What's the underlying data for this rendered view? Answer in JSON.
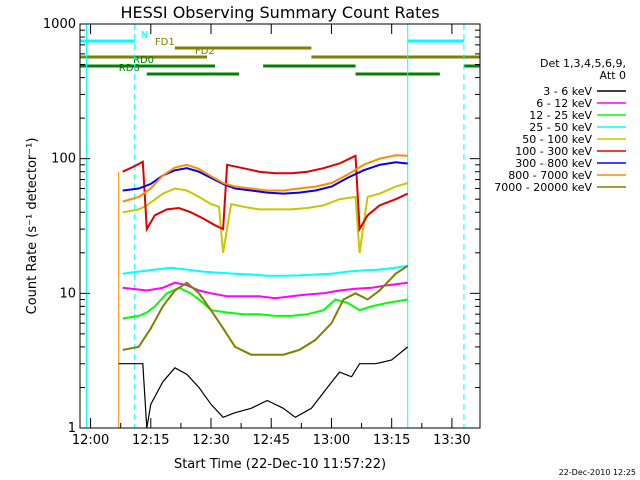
{
  "chart_data": {
    "type": "line",
    "title": "HESSI Observing Summary Count Rates",
    "xlabel": "Start Time (22-Dec-10 11:57:22)",
    "ylabel": "Count Rate (s⁻¹ detector⁻¹)",
    "x_ticks": [
      "12:00",
      "12:15",
      "12:30",
      "12:45",
      "13:00",
      "13:15",
      "13:30"
    ],
    "y_ticks": [
      "1",
      "10",
      "100",
      "1000"
    ],
    "y_scale": "log",
    "ylim": [
      1,
      1000
    ],
    "xlim": [
      "11:57:22",
      "13:37:00"
    ],
    "legend": {
      "header": "Det 1,3,4,5,6,9,",
      "subheader": "Att 0",
      "placement": "right"
    },
    "footer_stamp": "22-Dec-2010 12:25",
    "series": [
      {
        "name": "3 - 6 keV",
        "color": "#000000",
        "points": [
          [
            "12:07",
            3
          ],
          [
            "12:09",
            3
          ],
          [
            "12:11",
            3
          ],
          [
            "12:13",
            3
          ],
          [
            "12:14",
            1
          ],
          [
            "12:15",
            1.5
          ],
          [
            "12:18",
            2.2
          ],
          [
            "12:21",
            2.8
          ],
          [
            "12:24",
            2.5
          ],
          [
            "12:27",
            2
          ],
          [
            "12:30",
            1.5
          ],
          [
            "12:33",
            1.2
          ],
          [
            "12:36",
            1.3
          ],
          [
            "12:40",
            1.4
          ],
          [
            "12:44",
            1.6
          ],
          [
            "12:48",
            1.4
          ],
          [
            "12:51",
            1.2
          ],
          [
            "12:55",
            1.4
          ],
          [
            "12:59",
            2
          ],
          [
            "13:02",
            2.6
          ],
          [
            "13:05",
            2.4
          ],
          [
            "13:07",
            3
          ],
          [
            "13:11",
            3
          ],
          [
            "13:15",
            3.2
          ],
          [
            "13:19",
            4
          ]
        ]
      },
      {
        "name": "6 - 12 keV",
        "color": "#ff00ff",
        "points": [
          [
            "12:08",
            11
          ],
          [
            "12:14",
            10.5
          ],
          [
            "12:18",
            11
          ],
          [
            "12:21",
            12
          ],
          [
            "12:24",
            11.5
          ],
          [
            "12:27",
            10.5
          ],
          [
            "12:30",
            10
          ],
          [
            "12:34",
            9.5
          ],
          [
            "12:38",
            9.5
          ],
          [
            "12:42",
            9.5
          ],
          [
            "12:46",
            9.2
          ],
          [
            "12:50",
            9.5
          ],
          [
            "12:54",
            9.8
          ],
          [
            "12:58",
            10
          ],
          [
            "13:02",
            10.5
          ],
          [
            "13:06",
            10.8
          ],
          [
            "13:10",
            11
          ],
          [
            "13:14",
            11.5
          ],
          [
            "13:19",
            12
          ]
        ]
      },
      {
        "name": "12 - 25 keV",
        "color": "#00ff00",
        "points": [
          [
            "12:08",
            6.5
          ],
          [
            "12:12",
            6.8
          ],
          [
            "12:14",
            7.2
          ],
          [
            "12:16",
            8
          ],
          [
            "12:19",
            10
          ],
          [
            "12:22",
            11
          ],
          [
            "12:25",
            10
          ],
          [
            "12:28",
            8.5
          ],
          [
            "12:30",
            7.5
          ],
          [
            "12:34",
            7.2
          ],
          [
            "12:38",
            7
          ],
          [
            "12:42",
            7
          ],
          [
            "12:46",
            6.8
          ],
          [
            "12:50",
            6.8
          ],
          [
            "12:54",
            7
          ],
          [
            "12:58",
            7.5
          ],
          [
            "13:01",
            9
          ],
          [
            "13:04",
            8.5
          ],
          [
            "13:07",
            7.5
          ],
          [
            "13:10",
            8
          ],
          [
            "13:14",
            8.5
          ],
          [
            "13:19",
            9
          ]
        ]
      },
      {
        "name": "25 - 50 keV",
        "color": "#00ffff",
        "points": [
          [
            "12:08",
            14
          ],
          [
            "12:12",
            14.5
          ],
          [
            "12:16",
            15
          ],
          [
            "12:20",
            15.5
          ],
          [
            "12:24",
            15
          ],
          [
            "12:28",
            14.5
          ],
          [
            "12:32",
            14.2
          ],
          [
            "12:36",
            14
          ],
          [
            "12:40",
            13.8
          ],
          [
            "12:44",
            13.5
          ],
          [
            "12:48",
            13.5
          ],
          [
            "12:52",
            13.6
          ],
          [
            "12:56",
            13.8
          ],
          [
            "13:00",
            14
          ],
          [
            "13:04",
            14.5
          ],
          [
            "13:08",
            14.8
          ],
          [
            "13:12",
            15
          ],
          [
            "13:16",
            15.5
          ],
          [
            "13:19",
            16
          ]
        ]
      },
      {
        "name": "50 - 100 keV",
        "color": "#c8c800",
        "points": [
          [
            "12:08",
            40
          ],
          [
            "12:12",
            42
          ],
          [
            "12:14",
            45
          ],
          [
            "12:18",
            55
          ],
          [
            "12:21",
            60
          ],
          [
            "12:24",
            58
          ],
          [
            "12:27",
            52
          ],
          [
            "12:30",
            46
          ],
          [
            "12:32",
            44
          ],
          [
            "12:33",
            20
          ],
          [
            "12:35",
            46
          ],
          [
            "12:38",
            44
          ],
          [
            "12:42",
            42
          ],
          [
            "12:46",
            42
          ],
          [
            "12:50",
            42
          ],
          [
            "12:54",
            43
          ],
          [
            "12:58",
            45
          ],
          [
            "13:02",
            50
          ],
          [
            "13:06",
            52
          ],
          [
            "13:07",
            20
          ],
          [
            "13:09",
            52
          ],
          [
            "13:12",
            55
          ],
          [
            "13:16",
            62
          ],
          [
            "13:19",
            66
          ]
        ]
      },
      {
        "name": "100 - 300 keV",
        "color": "#e00000",
        "points": [
          [
            "12:08",
            80
          ],
          [
            "12:11",
            88
          ],
          [
            "12:13",
            95
          ],
          [
            "12:14",
            30
          ],
          [
            "12:16",
            38
          ],
          [
            "12:19",
            42
          ],
          [
            "12:22",
            43
          ],
          [
            "12:25",
            40
          ],
          [
            "12:28",
            36
          ],
          [
            "12:31",
            32
          ],
          [
            "12:33",
            30
          ],
          [
            "12:34",
            90
          ],
          [
            "12:38",
            85
          ],
          [
            "12:42",
            80
          ],
          [
            "12:46",
            78
          ],
          [
            "12:50",
            78
          ],
          [
            "12:54",
            80
          ],
          [
            "12:58",
            85
          ],
          [
            "13:02",
            92
          ],
          [
            "13:06",
            105
          ],
          [
            "13:07",
            30
          ],
          [
            "13:09",
            38
          ],
          [
            "13:12",
            45
          ],
          [
            "13:16",
            50
          ],
          [
            "13:19",
            55
          ]
        ]
      },
      {
        "name": "300 - 800 keV",
        "color": "#0000ff",
        "points": [
          [
            "12:08",
            58
          ],
          [
            "12:12",
            60
          ],
          [
            "12:15",
            65
          ],
          [
            "12:18",
            75
          ],
          [
            "12:21",
            82
          ],
          [
            "12:24",
            85
          ],
          [
            "12:27",
            80
          ],
          [
            "12:30",
            72
          ],
          [
            "12:33",
            65
          ],
          [
            "12:36",
            60
          ],
          [
            "12:40",
            58
          ],
          [
            "12:44",
            56
          ],
          [
            "12:48",
            55
          ],
          [
            "12:52",
            56
          ],
          [
            "12:56",
            58
          ],
          [
            "13:00",
            62
          ],
          [
            "13:04",
            72
          ],
          [
            "13:08",
            82
          ],
          [
            "13:12",
            90
          ],
          [
            "13:16",
            94
          ],
          [
            "13:19",
            92
          ]
        ]
      },
      {
        "name": "800 - 7000 keV",
        "color": "#ff8c00",
        "points": [
          [
            "12:08",
            48
          ],
          [
            "12:12",
            52
          ],
          [
            "12:15",
            60
          ],
          [
            "12:18",
            75
          ],
          [
            "12:21",
            86
          ],
          [
            "12:24",
            90
          ],
          [
            "12:27",
            84
          ],
          [
            "12:30",
            74
          ],
          [
            "12:33",
            66
          ],
          [
            "12:36",
            62
          ],
          [
            "12:40",
            60
          ],
          [
            "12:44",
            58
          ],
          [
            "12:48",
            58
          ],
          [
            "12:52",
            60
          ],
          [
            "12:56",
            62
          ],
          [
            "13:00",
            66
          ],
          [
            "13:04",
            76
          ],
          [
            "13:08",
            90
          ],
          [
            "13:12",
            100
          ],
          [
            "13:16",
            106
          ],
          [
            "13:19",
            105
          ]
        ]
      },
      {
        "name": "7000 - 20000 keV",
        "color": "#808000",
        "points": [
          [
            "12:08",
            3.8
          ],
          [
            "12:12",
            4
          ],
          [
            "12:15",
            5.5
          ],
          [
            "12:18",
            8
          ],
          [
            "12:21",
            10.5
          ],
          [
            "12:24",
            12
          ],
          [
            "12:27",
            10
          ],
          [
            "12:30",
            7.5
          ],
          [
            "12:33",
            5.5
          ],
          [
            "12:36",
            4
          ],
          [
            "12:40",
            3.5
          ],
          [
            "12:44",
            3.5
          ],
          [
            "12:48",
            3.5
          ],
          [
            "12:52",
            3.8
          ],
          [
            "12:56",
            4.5
          ],
          [
            "13:00",
            6
          ],
          [
            "13:03",
            9
          ],
          [
            "13:06",
            10
          ],
          [
            "13:09",
            9
          ],
          [
            "13:12",
            10.5
          ],
          [
            "13:16",
            14
          ],
          [
            "13:19",
            16
          ]
        ]
      }
    ],
    "annotations": [
      {
        "label": "N",
        "color": "#00ffff",
        "segments": [
          [
            "11:57:22",
            "12:11:00"
          ],
          [
            "13:19:00",
            "13:33:00"
          ]
        ],
        "level": 0
      },
      {
        "label": "FD1",
        "color": "#808000",
        "segments": [
          [
            "12:21:00",
            "12:55:00"
          ]
        ],
        "level": 1
      },
      {
        "label": "FD2",
        "color": "#808000",
        "segments": [
          [
            "11:57:22",
            "12:29:00"
          ],
          [
            "12:55:00",
            "13:37:00"
          ]
        ],
        "level": 2
      },
      {
        "label": "RD0",
        "color": "#008000",
        "segments": [
          [
            "11:57:22",
            "12:31:00"
          ],
          [
            "12:43:00",
            "13:06:00"
          ],
          [
            "13:33:00",
            "13:37:00"
          ]
        ],
        "level": 3
      },
      {
        "label": "RD6",
        "color": "#008000",
        "segments": [
          [
            "12:14:00",
            "12:37:00"
          ],
          [
            "13:06:00",
            "13:27:00"
          ]
        ],
        "level": 4
      }
    ],
    "markers": {
      "cyan_solid": [
        "11:59:00",
        "13:19:00"
      ],
      "cyan_dashed": [
        "12:11:00",
        "13:33:00"
      ],
      "orange_solid": [
        "12:07:00"
      ]
    }
  }
}
